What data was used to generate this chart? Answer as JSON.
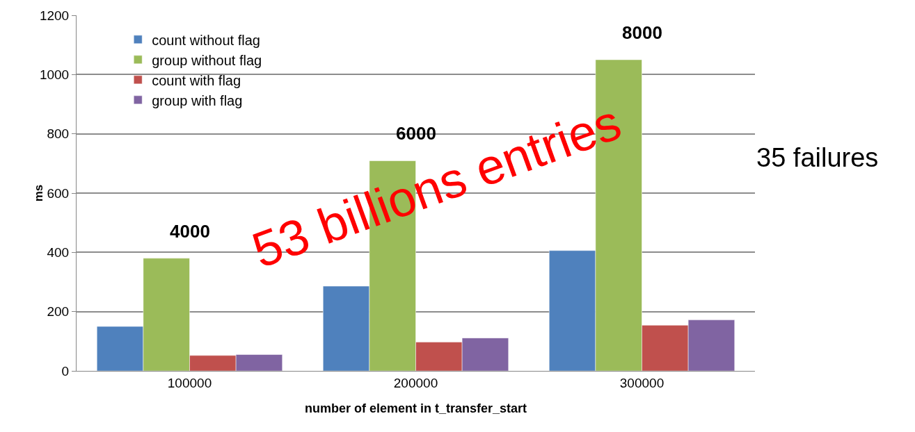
{
  "chart_data": {
    "type": "bar",
    "xlabel": "number of element in t_transfer_start",
    "ylabel": "ms",
    "categories": [
      "100000",
      "200000",
      "300000"
    ],
    "series": [
      {
        "name": "count without flag",
        "color": "#4f81bd",
        "values": [
          150,
          286,
          406
        ]
      },
      {
        "name": "group without flag",
        "color": "#9bbb59",
        "values": [
          380,
          709,
          1050
        ]
      },
      {
        "name": "count with flag",
        "color": "#c0504d",
        "values": [
          52,
          97,
          154
        ]
      },
      {
        "name": "group with flag",
        "color": "#8064a2",
        "values": [
          55,
          111,
          172
        ]
      }
    ],
    "ylim": [
      0,
      1200
    ],
    "yticks": [
      0,
      200,
      400,
      600,
      800,
      1000,
      1200
    ],
    "grid": "y",
    "legend": "top left",
    "annotations": [
      {
        "text": "4000",
        "x": "100000",
        "y": 380
      },
      {
        "text": "6000",
        "x": "200000",
        "y": 709
      },
      {
        "text": "8000",
        "x": "300000",
        "y": 1050
      },
      "53 billions entries",
      "35 failures"
    ]
  }
}
